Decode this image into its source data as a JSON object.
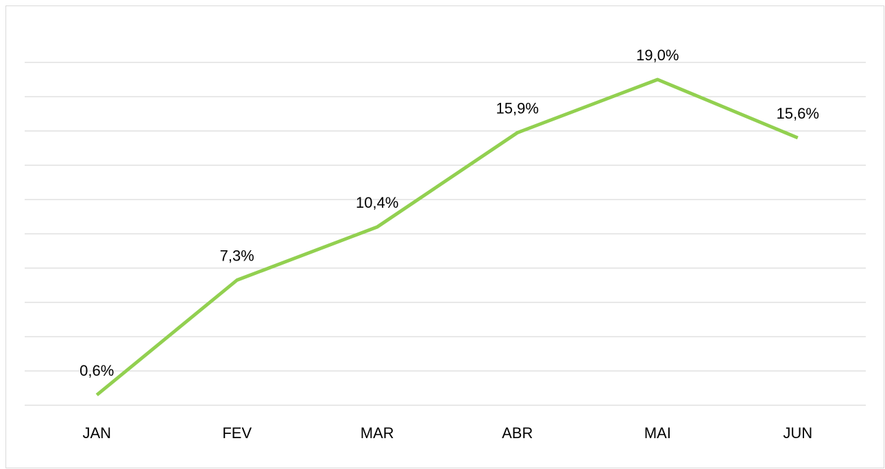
{
  "chart_data": {
    "type": "line",
    "categories": [
      "JAN",
      "FEV",
      "MAR",
      "ABR",
      "MAI",
      "JUN"
    ],
    "series": [
      {
        "color": "#92d050",
        "values": [
          0.6,
          7.3,
          10.4,
          15.9,
          19.0,
          15.6
        ],
        "value_labels": [
          "0,6%",
          "7,3%",
          "10,4%",
          "15,9%",
          "19,0%",
          "15,6%"
        ]
      }
    ],
    "ylim": [
      0,
      20
    ],
    "yticks": [
      0,
      2,
      4,
      6,
      8,
      10,
      12,
      14,
      16,
      18,
      20
    ],
    "grid": true
  }
}
